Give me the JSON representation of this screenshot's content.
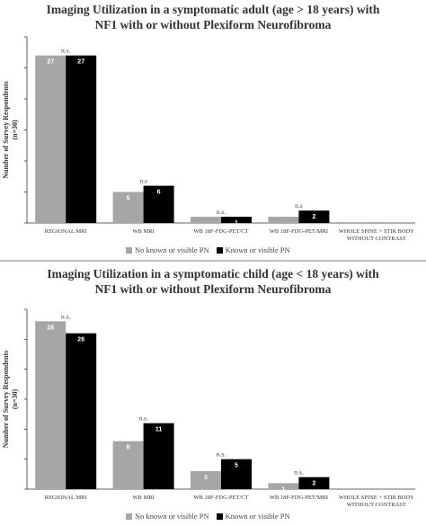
{
  "chart_data": [
    {
      "type": "bar",
      "title_lines": [
        "Imaging Utilization in a symptomatic adult (age > 18 years) with",
        "NF1 with or without Plexiform Neurofibroma"
      ],
      "ylabel_lines": [
        "Number of Survey Respondents",
        "(n=30)"
      ],
      "xlabel": "",
      "ylim": [
        0,
        30
      ],
      "grid": false,
      "legend_position": "bottom",
      "categories": [
        [
          "REGIONAL MRI"
        ],
        [
          "WB MRI"
        ],
        [
          "WB  18F-FDG-PET/CT"
        ],
        [
          "WB  18F-FDG-PET/MRI"
        ],
        [
          "WHOLE SPINE + STIR BODY",
          "WITHOUT CONTRAST"
        ]
      ],
      "series": [
        {
          "name": "No known or visible PN",
          "color": "#a6a6a6",
          "values": [
            27,
            5,
            1,
            1,
            0
          ],
          "labels": [
            "27",
            "5",
            "",
            "",
            ""
          ]
        },
        {
          "name": "Known or visible PN",
          "color": "#000000",
          "values": [
            27,
            6,
            1,
            2,
            0
          ],
          "labels": [
            "27",
            "6",
            "1",
            "2",
            ""
          ]
        }
      ],
      "annotations": [
        "n.s.",
        "n.s",
        "n.s.",
        "n.s",
        ""
      ]
    },
    {
      "type": "bar",
      "title_lines": [
        "Imaging Utilization in a symptomatic child  (age < 18 years)  with",
        "NF1 with or without Plexiform Neurofibroma"
      ],
      "ylabel_lines": [
        "Number of Survey Respondents",
        "(n=30)"
      ],
      "xlabel": "",
      "ylim": [
        0,
        30
      ],
      "grid": false,
      "legend_position": "bottom",
      "categories": [
        [
          "REGIONAL MRI"
        ],
        [
          "WB MRI"
        ],
        [
          "WB  18F-FDG-PET/CT"
        ],
        [
          "WB  18F-FDG-PET/MRI"
        ],
        [
          "WHOLE SPINE + STIR BODY",
          "WITHOUT CONTRAST"
        ]
      ],
      "series": [
        {
          "name": "No known or visible PN",
          "color": "#a6a6a6",
          "values": [
            28,
            8,
            3,
            1,
            0
          ],
          "labels": [
            "28",
            "8",
            "3",
            "1",
            ""
          ]
        },
        {
          "name": "Known or visible PN",
          "color": "#000000",
          "values": [
            26,
            11,
            5,
            2,
            0
          ],
          "labels": [
            "26",
            "11",
            "5",
            "2",
            ""
          ]
        }
      ],
      "annotations": [
        "n.s.",
        "n.s.",
        "n.s.",
        "n.s.",
        ""
      ]
    }
  ]
}
